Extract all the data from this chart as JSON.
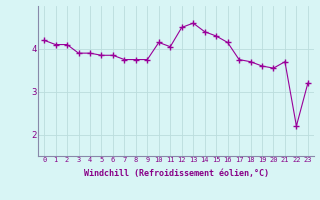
{
  "x": [
    0,
    1,
    2,
    3,
    4,
    5,
    6,
    7,
    8,
    9,
    10,
    11,
    12,
    13,
    14,
    15,
    16,
    17,
    18,
    19,
    20,
    21,
    22,
    23
  ],
  "y": [
    4.2,
    4.1,
    4.1,
    3.9,
    3.9,
    3.85,
    3.85,
    3.75,
    3.75,
    3.75,
    4.15,
    4.05,
    4.5,
    4.6,
    4.4,
    4.3,
    4.15,
    3.75,
    3.7,
    3.6,
    3.55,
    3.7,
    2.2,
    3.2
  ],
  "line_color": "#990099",
  "marker": "+",
  "marker_size": 4,
  "marker_lw": 1.0,
  "line_width": 0.8,
  "bg_color": "#d8f5f5",
  "grid_color": "#bbdddd",
  "xlabel": "Windchill (Refroidissement éolien,°C)",
  "xlabel_color": "#880088",
  "tick_color": "#880088",
  "ylim": [
    1.5,
    5.0
  ],
  "xlim": [
    -0.5,
    23.5
  ],
  "yticks": [
    2,
    3,
    4
  ],
  "xtick_labels": [
    "0",
    "1",
    "2",
    "3",
    "4",
    "5",
    "6",
    "7",
    "8",
    "9",
    "10",
    "11",
    "12",
    "13",
    "14",
    "15",
    "16",
    "17",
    "18",
    "19",
    "20",
    "21",
    "22",
    "23"
  ],
  "spine_color": "#8888aa",
  "xlabel_fontsize": 6.0,
  "xtick_fontsize": 5.0,
  "ytick_fontsize": 6.5
}
